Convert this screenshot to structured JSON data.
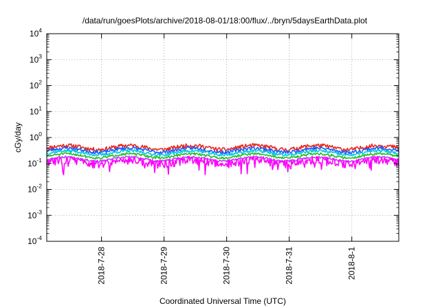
{
  "chart_data": {
    "type": "line",
    "title": "/data/run/goesPlots/archive/2018-08-01/18:00/flux/../bryn/5daysEarthData.plot",
    "xlabel": "Coordinated Universal Time (UTC)",
    "ylabel": "cGy/day",
    "yscale": "log",
    "ylim": [
      0.0001,
      10000
    ],
    "xlim": [
      "2018-07-27 03:00",
      "2018-08-01 18:00"
    ],
    "grid": true,
    "y_ticks": [
      {
        "value": 0.0001,
        "base": "10",
        "exp": "-4"
      },
      {
        "value": 0.001,
        "base": "10",
        "exp": "-3"
      },
      {
        "value": 0.01,
        "base": "10",
        "exp": "-2"
      },
      {
        "value": 0.1,
        "base": "10",
        "exp": "-1"
      },
      {
        "value": 1,
        "base": "10",
        "exp": "0"
      },
      {
        "value": 10,
        "base": "10",
        "exp": "1"
      },
      {
        "value": 100,
        "base": "10",
        "exp": "2"
      },
      {
        "value": 1000,
        "base": "10",
        "exp": "3"
      },
      {
        "value": 10000,
        "base": "10",
        "exp": "4"
      }
    ],
    "x_ticks": [
      {
        "value": "2018-07-28 00:00",
        "label": "2018-7-28"
      },
      {
        "value": "2018-07-29 00:00",
        "label": "2018-7-29"
      },
      {
        "value": "2018-07-30 00:00",
        "label": "2018-7-30"
      },
      {
        "value": "2018-07-31 00:00",
        "label": "2018-7-31"
      },
      {
        "value": "2018-08-01 00:00",
        "label": "2018-8-1"
      }
    ],
    "series": [
      {
        "color": "#e8261c",
        "level": 0.42,
        "spread": 0.18,
        "seed": 11
      },
      {
        "color": "#1e5bff",
        "level": 0.33,
        "spread": 0.15,
        "seed": 23
      },
      {
        "color": "#00c8e0",
        "level": 0.26,
        "spread": 0.12,
        "seed": 37
      },
      {
        "color": "#20c020",
        "level": 0.2,
        "spread": 0.1,
        "seed": 51
      },
      {
        "color": "#c040ff",
        "level": 0.15,
        "spread": 0.1,
        "seed": 67
      },
      {
        "color": "#ff00ff",
        "level": 0.12,
        "spread": 0.35,
        "seed": 83
      }
    ]
  }
}
